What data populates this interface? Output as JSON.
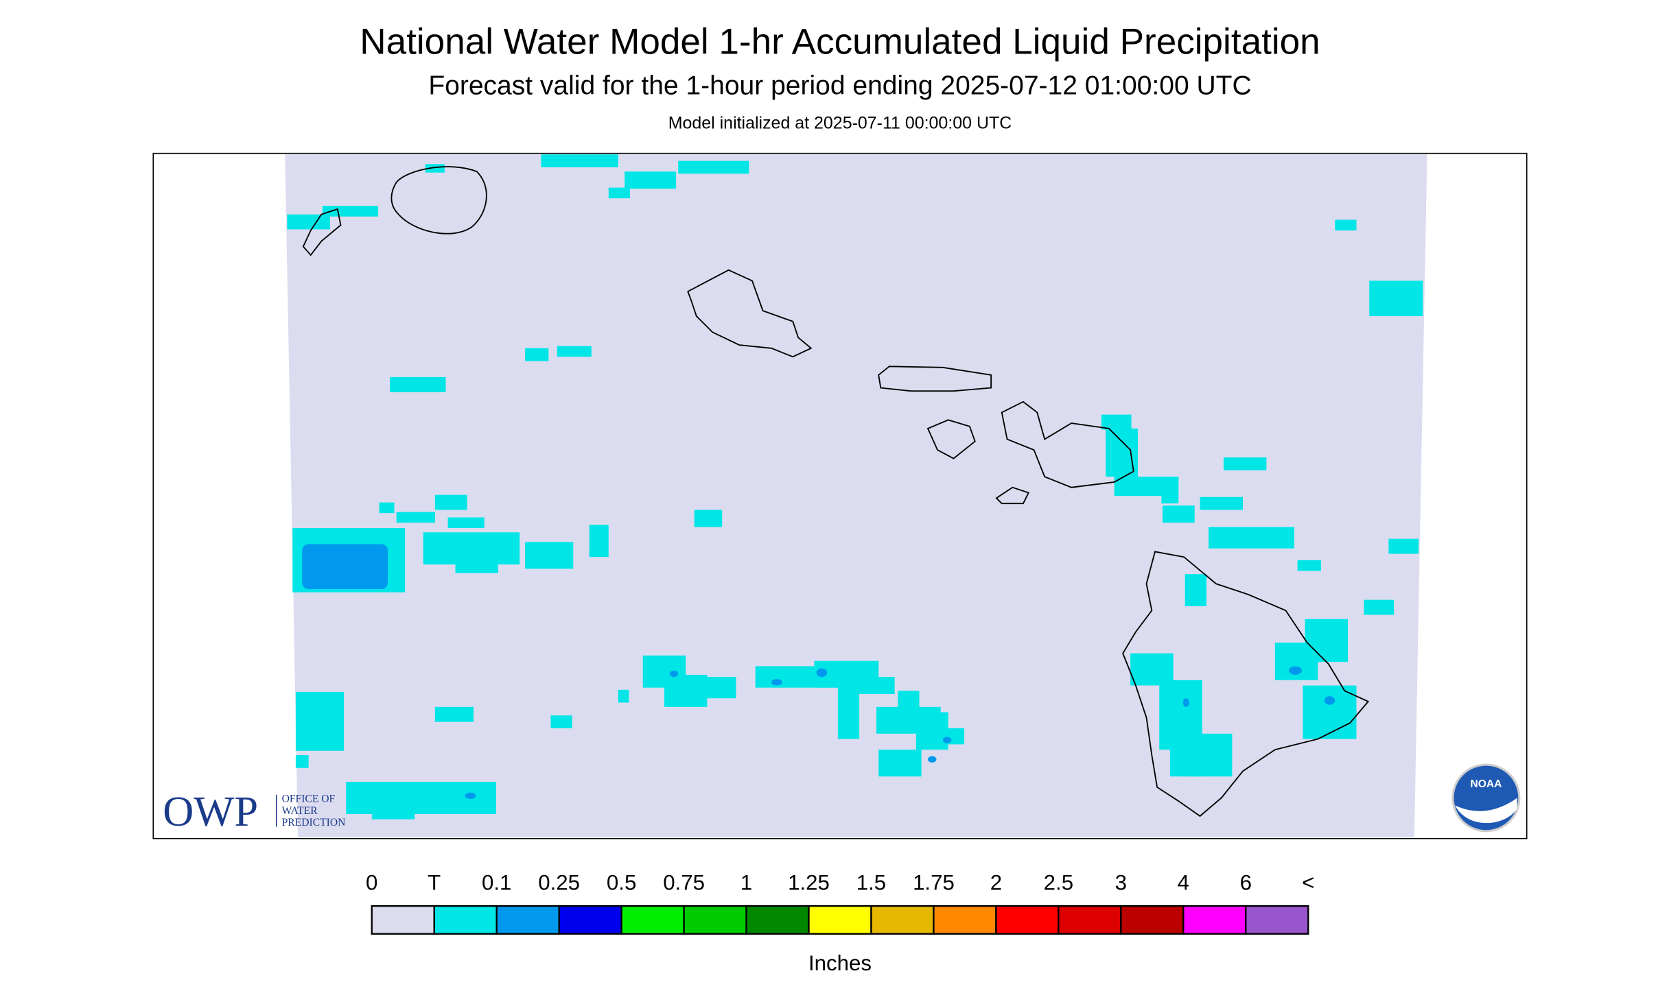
{
  "header": {
    "title": "National Water Model 1-hr Accumulated Liquid Precipitation",
    "subtitle": "Forecast valid for the 1-hour period ending 2025-07-12 01:00:00 UTC",
    "init": "Model initialized at 2025-07-11 00:00:00 UTC"
  },
  "legend": {
    "labels": [
      "0",
      "T",
      "0.1",
      "0.25",
      "0.5",
      "0.75",
      "1",
      "1.25",
      "1.5",
      "1.75",
      "2",
      "2.5",
      "3",
      "4",
      "6",
      "<"
    ],
    "colors": [
      "#dcdcf0",
      "#00e6e6",
      "#0099ee",
      "#0000ee",
      "#00ee00",
      "#00cc00",
      "#008800",
      "#ffff00",
      "#e6b800",
      "#ff8800",
      "#ff0000",
      "#dd0000",
      "#bb0000",
      "#ff00ff",
      "#9955cc"
    ],
    "unit": "Inches"
  },
  "logos": {
    "owp": "OWP",
    "owp_lines": [
      "OFFICE OF",
      "WATER",
      "PREDICTION"
    ],
    "noaa": "NOAA"
  }
}
